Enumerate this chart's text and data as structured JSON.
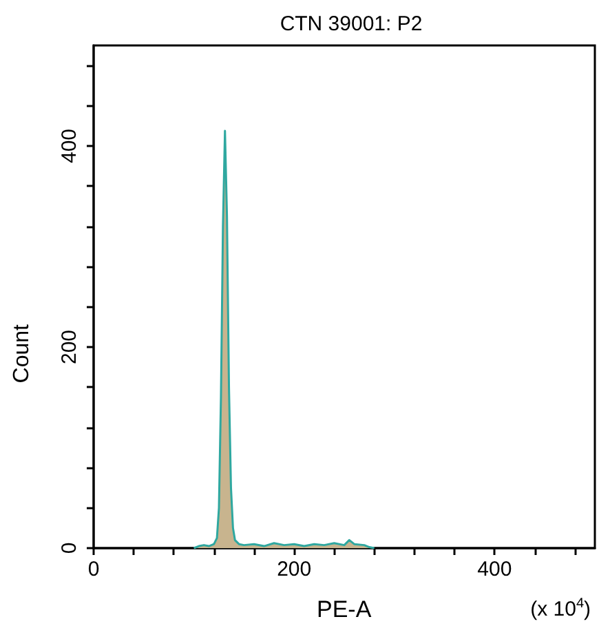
{
  "chart_data": {
    "type": "area",
    "title": "CTN 39001: P2",
    "xlabel": "PE-A",
    "ylabel": "Count",
    "annotations": [
      "(x 10$^{4}$)"
    ],
    "x": [
      100,
      105,
      110,
      115,
      120,
      123,
      125,
      127,
      129,
      131,
      133,
      135,
      137,
      139,
      141,
      145,
      150,
      160,
      170,
      180,
      190,
      200,
      210,
      220,
      230,
      240,
      250,
      255,
      260,
      270,
      275,
      280
    ],
    "series": [
      {
        "color": "#c8b48e",
        "values": [
          0,
          2,
          3,
          2,
          4,
          10,
          40,
          150,
          320,
          415,
          330,
          160,
          60,
          20,
          8,
          4,
          3,
          4,
          2,
          5,
          3,
          4,
          2,
          4,
          3,
          5,
          3,
          8,
          4,
          3,
          1,
          0
        ]
      }
    ],
    "xlim": [
      0,
      500
    ],
    "ylim": [
      0,
      500
    ],
    "xticks": [
      0,
      {
        "value": 40,
        "label": null
      },
      {
        "value": 80,
        "label": null
      },
      {
        "value": 120,
        "label": null
      },
      {
        "value": 160,
        "label": null
      },
      200,
      {
        "value": 240,
        "label": null
      },
      {
        "value": 280,
        "label": null
      },
      {
        "value": 320,
        "label": null
      },
      {
        "value": 360,
        "label": null
      },
      400,
      {
        "value": 440,
        "label": null
      },
      {
        "value": 480,
        "label": null
      }
    ],
    "yticks": [
      0,
      {
        "value": 40,
        "label": null
      },
      {
        "value": 80,
        "label": null
      },
      {
        "value": 120,
        "label": null
      },
      {
        "value": 160,
        "label": null
      },
      200,
      {
        "value": 240,
        "label": null
      },
      {
        "value": 280,
        "label": null
      },
      {
        "value": 320,
        "label": null
      },
      {
        "value": 360,
        "label": null
      },
      400,
      {
        "value": 440,
        "label": null
      },
      {
        "value": 480,
        "label": null
      }
    ],
    "grid": false,
    "marker": "none",
    "line_style": "solid"
  }
}
